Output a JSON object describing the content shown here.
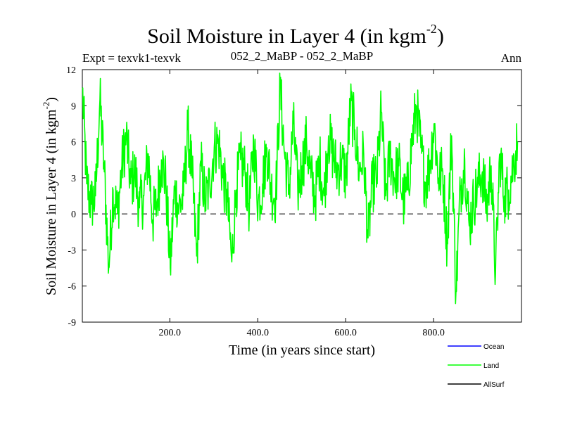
{
  "chart_data": {
    "type": "line",
    "title": "Soil Moisture in Layer 4 (in kgm",
    "title_sup": "-2",
    "title_close": ")",
    "subtitle_left": "Expt = texvk1-texvk",
    "subtitle_center": "052_2_MaBP - 052_2_MaBP",
    "subtitle_right": "Ann",
    "xlabel": "Time (in years since start)",
    "ylabel": "Soil Moisture in Layer 4 (in kgm",
    "ylabel_sup": "-2",
    "ylabel_close": ")",
    "xlim": [
      1,
      1000
    ],
    "ylim": [
      -9,
      12
    ],
    "xticks": [
      200,
      400,
      600,
      800
    ],
    "xtick_labels": [
      "200.0",
      "400.0",
      "600.0",
      "800.0"
    ],
    "yticks": [
      -9,
      -6,
      -3,
      0,
      3,
      6,
      9,
      12
    ],
    "ytick_labels": [
      "-9",
      "-6",
      "-3",
      "0",
      "3",
      "6",
      "9",
      "12"
    ],
    "reference_line": 0,
    "legend": [
      {
        "name": "Ocean",
        "color": "#0000ff"
      },
      {
        "name": "Land",
        "color": "#00ff00"
      },
      {
        "name": "AllSurf",
        "color": "#000000"
      }
    ],
    "series": [
      {
        "name": "Land",
        "color": "#00ff00",
        "x_start": 1,
        "x_step": 10,
        "values": [
          10.5,
          2.5,
          0.8,
          1.5,
          9.5,
          3.5,
          -4.5,
          2.0,
          0.0,
          4.0,
          6.5,
          2.5,
          3.5,
          0.5,
          1.5,
          5.0,
          -0.5,
          1.0,
          4.5,
          2.5,
          -4.5,
          2.0,
          0.5,
          1.5,
          7.0,
          3.0,
          -3.5,
          4.0,
          1.0,
          2.5,
          5.5,
          6.0,
          3.0,
          1.0,
          -4.0,
          2.0,
          4.5,
          3.5,
          0.5,
          6.0,
          1.0,
          2.5,
          5.5,
          2.0,
          1.5,
          10.5,
          5.0,
          2.0,
          7.5,
          2.0,
          4.0,
          6.0,
          3.0,
          1.5,
          4.5,
          1.5,
          6.5,
          5.0,
          3.5,
          4.5,
          3.0,
          9.0,
          7.0,
          3.5,
          5.0,
          -2.0,
          2.5,
          3.0,
          8.5,
          1.5,
          5.0,
          3.0,
          4.0,
          1.0,
          2.0,
          6.0,
          9.0,
          5.5,
          2.5,
          4.0,
          7.5,
          3.0,
          3.5,
          -2.5,
          6.5,
          -6.5,
          2.0,
          4.5,
          -1.0,
          1.0,
          2.5,
          3.5,
          0.5,
          4.0,
          -5.0,
          5.0,
          1.5,
          2.0,
          4.0,
          6.0
        ]
      }
    ]
  }
}
